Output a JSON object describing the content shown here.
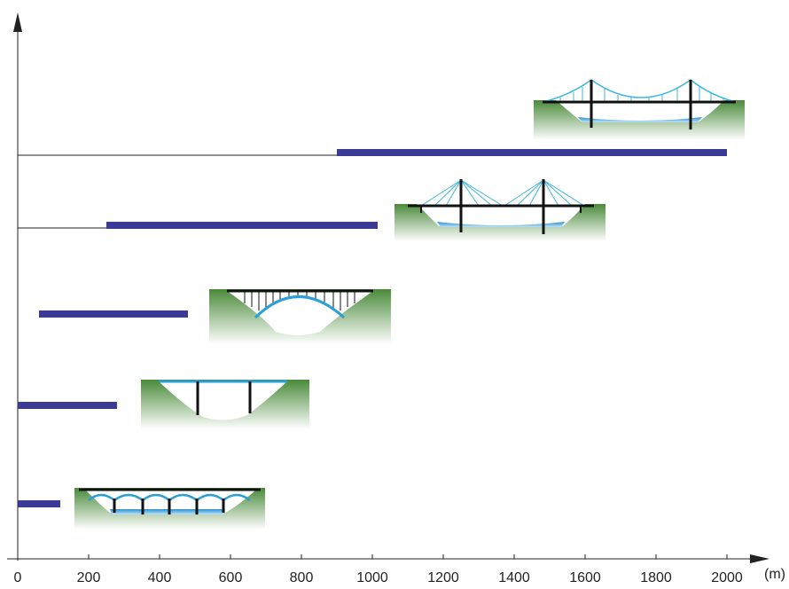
{
  "chart_data": {
    "type": "range-bar",
    "categories": [
      null,
      null,
      null,
      null,
      null
    ],
    "values": [
      [
        900,
        2000
      ],
      [
        250,
        1015
      ],
      [
        60,
        480
      ],
      [
        0,
        280
      ],
      [
        0,
        120
      ]
    ],
    "color": "#3b3b96",
    "leader_lines": [
      true,
      true,
      false,
      false,
      false
    ],
    "x_label": "(m)",
    "xlim": [
      0,
      2000
    ],
    "xticks": [
      0,
      200,
      400,
      600,
      800,
      1000,
      1200,
      1400,
      1600,
      1800,
      2000
    ]
  }
}
